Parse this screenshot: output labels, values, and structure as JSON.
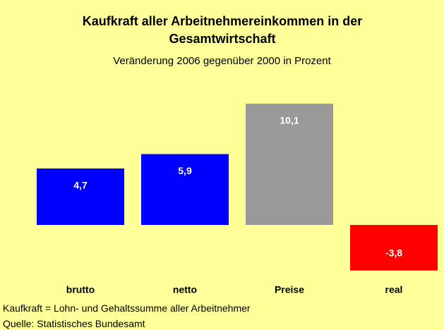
{
  "chart_data": {
    "type": "bar",
    "title": "Kaufkraft aller Arbeitnehmereinkommen in der Gesamtwirtschaft",
    "subtitle": "Veränderung 2006 gegenüber 2000 in Prozent",
    "categories": [
      "brutto",
      "netto",
      "Preise",
      "real"
    ],
    "values": [
      4.7,
      5.9,
      10.1,
      -3.8
    ],
    "value_labels": [
      "4,7",
      "5,9",
      "10,1",
      "-3,8"
    ],
    "colors": [
      "#0000ff",
      "#0000ff",
      "#999999",
      "#ff0000"
    ],
    "notes": [
      "Kaufkraft = Lohn- und Gehaltssumme aller Arbeitnehmer",
      "Quelle: Statistisches Bundesamt"
    ]
  }
}
